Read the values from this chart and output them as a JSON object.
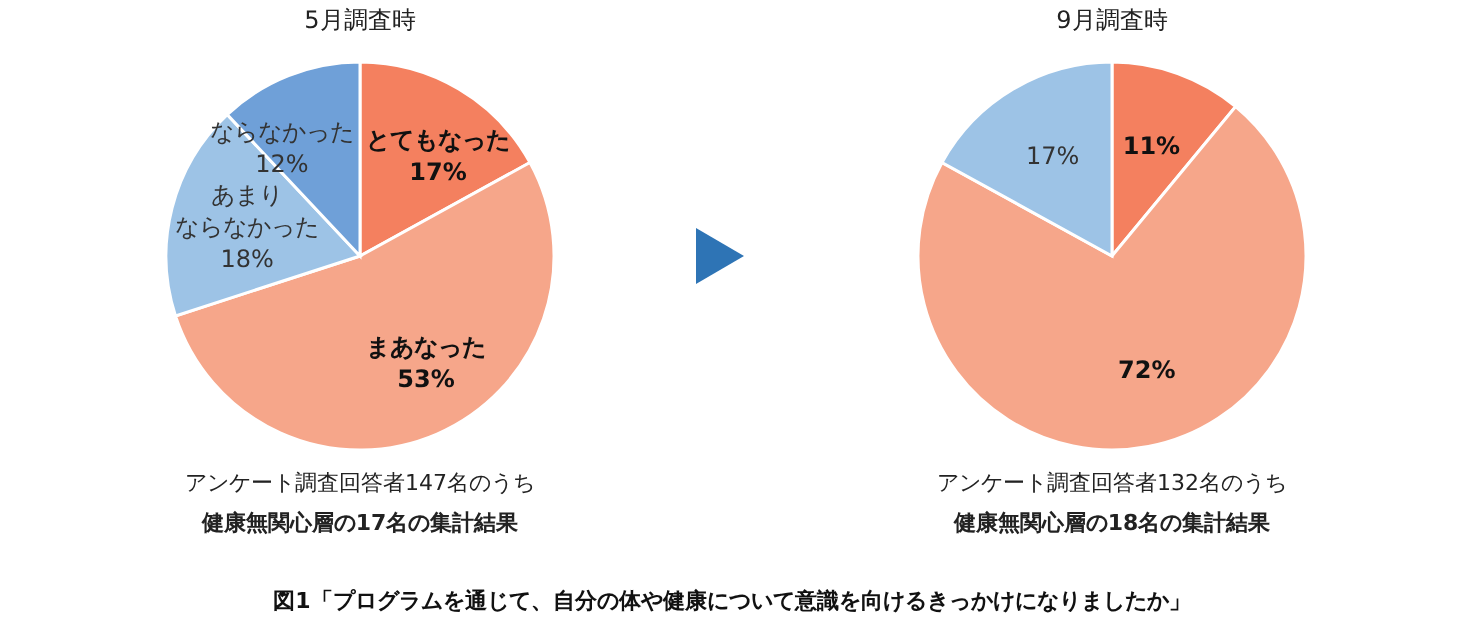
{
  "chart_data": [
    {
      "type": "pie",
      "title": "5月調査時",
      "categories": [
        "とてもなった",
        "まあなった",
        "あまりならなかった",
        "ならなかった"
      ],
      "values": [
        17,
        53,
        18,
        12
      ],
      "value_labels": [
        "17%",
        "53%",
        "18%",
        "12%"
      ],
      "colors": [
        "#f4805f",
        "#f6a68a",
        "#9dc3e6",
        "#6fa0d8"
      ],
      "annotations": [
        "アンケート調査回答者147名のうち",
        "健康無関心層の17名の集計結果",
        "図1「プログラムを通じて、自分の体や健康について意識を向けるきっかけになりましたか」"
      ]
    },
    {
      "type": "pie",
      "title": "9月調査時",
      "categories": [
        null,
        null,
        null
      ],
      "values": [
        11,
        72,
        17
      ],
      "value_labels": [
        "11%",
        "72%",
        "17%"
      ],
      "colors": [
        "#f4805f",
        "#f6a68a",
        "#9dc3e6"
      ],
      "annotations": [
        "アンケート調査回答者132名のうち",
        "健康無関心層の18名の集計結果"
      ]
    }
  ]
}
